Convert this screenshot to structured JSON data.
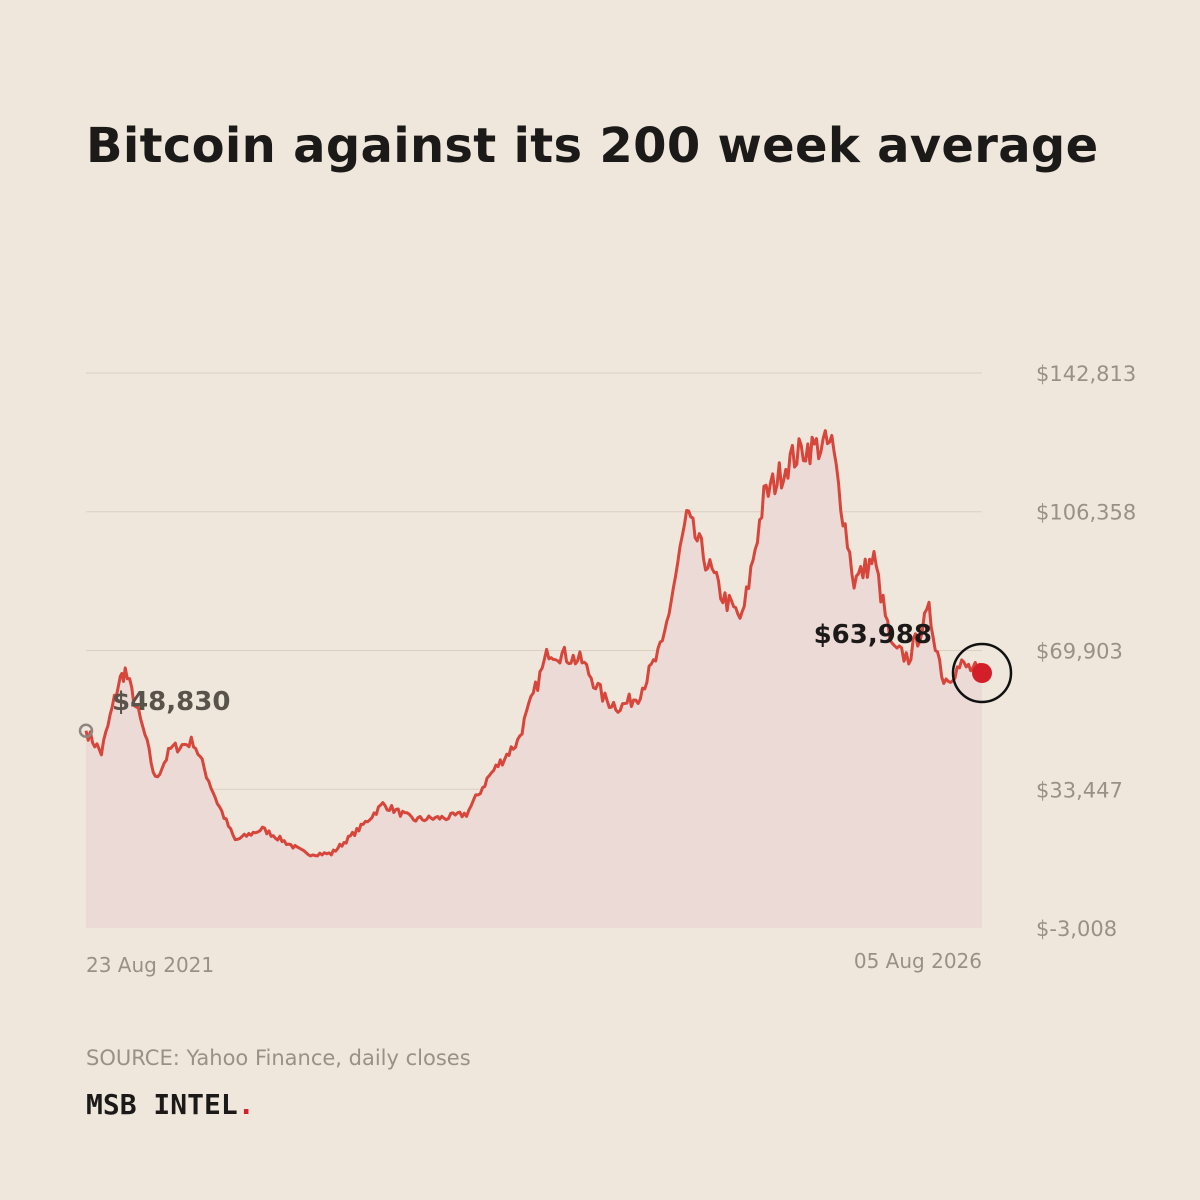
{
  "header": {
    "title": "Bitcoin against its 200 week average"
  },
  "footer": {
    "source": "SOURCE: Yahoo Finance, daily closes",
    "brand": "MSB INTEL",
    "brand_dot": "."
  },
  "colors": {
    "background": "#efe7db",
    "line": "#d8453a",
    "area": "#ecdad6",
    "grid": "#d9d0c3",
    "tick_text": "#9a9186",
    "marker": "#d21f2a"
  },
  "chart_data": {
    "type": "area",
    "title": "Bitcoin against its 200 week average",
    "xlabel": "",
    "ylabel": "",
    "ylim": [
      -3008,
      142813
    ],
    "y_ticks": [
      -3008,
      33447,
      69903,
      106358,
      142813
    ],
    "y_tick_labels": [
      "$-3,008",
      "$33,447",
      "$69,903",
      "$106,358",
      "$142,813"
    ],
    "x_range": [
      "2021-08-23",
      "2026-08-05"
    ],
    "x_tick_labels": [
      "23 Aug 2021",
      "05 Aug 2026"
    ],
    "grid": true,
    "series": [
      {
        "x": [
          "2021-08-23",
          "2021-09-23",
          "2021-10-28",
          "2021-11-10",
          "2021-12-20",
          "2022-01-10",
          "2022-02-10",
          "2022-03-28",
          "2022-05-15",
          "2022-06-20",
          "2022-08-14",
          "2022-11-10",
          "2022-12-31",
          "2023-03-01",
          "2023-04-14",
          "2023-06-15",
          "2023-08-20",
          "2023-09-30",
          "2023-11-15",
          "2024-01-11",
          "2024-03-14",
          "2024-05-20",
          "2024-07-05",
          "2024-08-05",
          "2024-09-10",
          "2024-10-29",
          "2024-12-17",
          "2025-01-20",
          "2025-02-28",
          "2025-04-08",
          "2025-05-22",
          "2025-07-14",
          "2025-08-14",
          "2025-10-06",
          "2025-11-20",
          "2025-12-30",
          "2026-02-05",
          "2026-03-10",
          "2026-04-20",
          "2026-05-20",
          "2026-06-25",
          "2026-08-05"
        ],
        "y": [
          48830,
          43000,
          61500,
          64500,
          47500,
          36000,
          44000,
          46000,
          30000,
          20000,
          23000,
          16500,
          16500,
          23500,
          29500,
          25500,
          26000,
          27000,
          37000,
          46000,
          70000,
          67000,
          57000,
          55000,
          58000,
          71000,
          105000,
          95000,
          84000,
          78000,
          110000,
          120000,
          123000,
          124000,
          88000,
          94000,
          70000,
          68000,
          80000,
          62000,
          66000,
          63988
        ]
      }
    ],
    "annotations": [
      {
        "label": "$48,830",
        "value": 48830,
        "date": "2021-08-23"
      },
      {
        "label": "$63,988",
        "value": 63988,
        "date": "2026-08-05"
      }
    ]
  }
}
